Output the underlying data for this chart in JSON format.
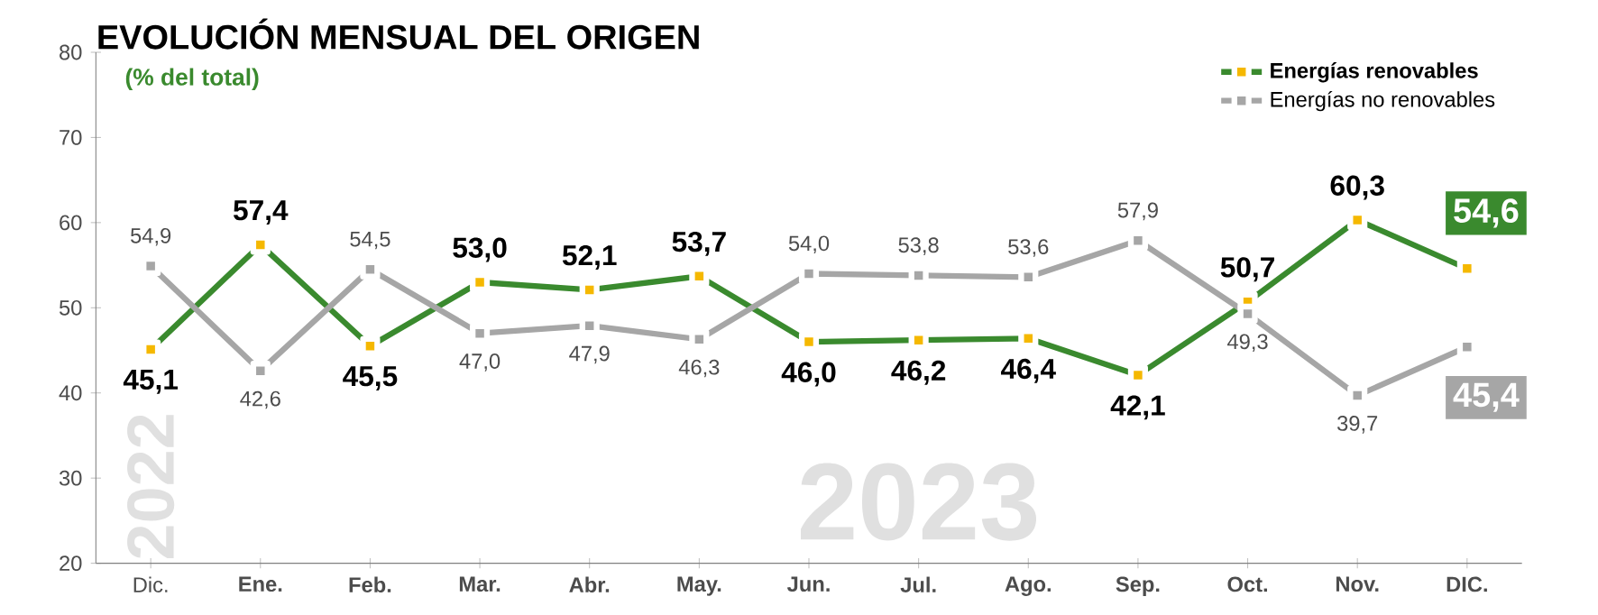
{
  "chart_data": {
    "type": "line",
    "title": "EVOLUCIÓN MENSUAL DEL ORIGEN",
    "subtitle": "(% del total)",
    "categories": [
      "Dic.",
      "Ene.",
      "Feb.",
      "Mar.",
      "Abr.",
      "May.",
      "Jun.",
      "Jul.",
      "Ago.",
      "Sep.",
      "Oct.",
      "Nov.",
      "DIC."
    ],
    "series": [
      {
        "name": "Energías renovables",
        "color": "#3a8a2e",
        "values": [
          45.1,
          57.4,
          45.5,
          53.0,
          52.1,
          53.7,
          46.0,
          46.2,
          46.4,
          42.1,
          50.7,
          60.3,
          54.6
        ],
        "value_labels": [
          "45,1",
          "57,4",
          "45,5",
          "53,0",
          "52,1",
          "53,7",
          "46,0",
          "46,2",
          "46,4",
          "42,1",
          "50,7",
          "60,3",
          "54,6"
        ]
      },
      {
        "name": "Energías no renovables",
        "color": "#a6a6a6",
        "values": [
          54.9,
          42.6,
          54.5,
          47.0,
          47.9,
          46.3,
          54.0,
          53.8,
          53.6,
          57.9,
          49.3,
          39.7,
          45.4
        ],
        "value_labels": [
          "54,9",
          "42,6",
          "54,5",
          "47,0",
          "47,9",
          "46,3",
          "54,0",
          "53,8",
          "53,6",
          "57,9",
          "49,3",
          "39,7",
          "45,4"
        ]
      }
    ],
    "ylim": [
      20,
      80
    ],
    "yticks": [
      20,
      30,
      40,
      50,
      60,
      70,
      80
    ],
    "annotations": [
      "2022",
      "2023"
    ],
    "legend": "top right",
    "marker": "square",
    "line_style": "solid",
    "grid": false
  }
}
